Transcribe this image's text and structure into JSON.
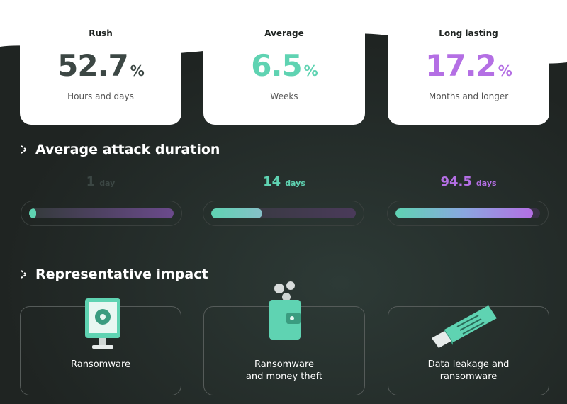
{
  "stats": [
    {
      "label": "Rush",
      "value": 52.7,
      "unit": "%",
      "caption": "Hours and days"
    },
    {
      "label": "Average",
      "value": 6.5,
      "unit": "%",
      "caption": "Weeks"
    },
    {
      "label": "Long lasting",
      "value": 17.2,
      "unit": "%",
      "caption": "Months and longer"
    }
  ],
  "duration": {
    "title": "Average attack duration",
    "items": [
      {
        "value": 1,
        "unit": "day"
      },
      {
        "value": 14,
        "unit": "days"
      },
      {
        "value": 94.5,
        "unit": "days"
      }
    ]
  },
  "impact": {
    "title": "Representative impact",
    "items": [
      {
        "lines": [
          "Ransomware"
        ]
      },
      {
        "lines": [
          "Ransomware",
          "and money theft"
        ]
      },
      {
        "lines": [
          "Data leakage and",
          "ransomware"
        ]
      }
    ]
  }
}
